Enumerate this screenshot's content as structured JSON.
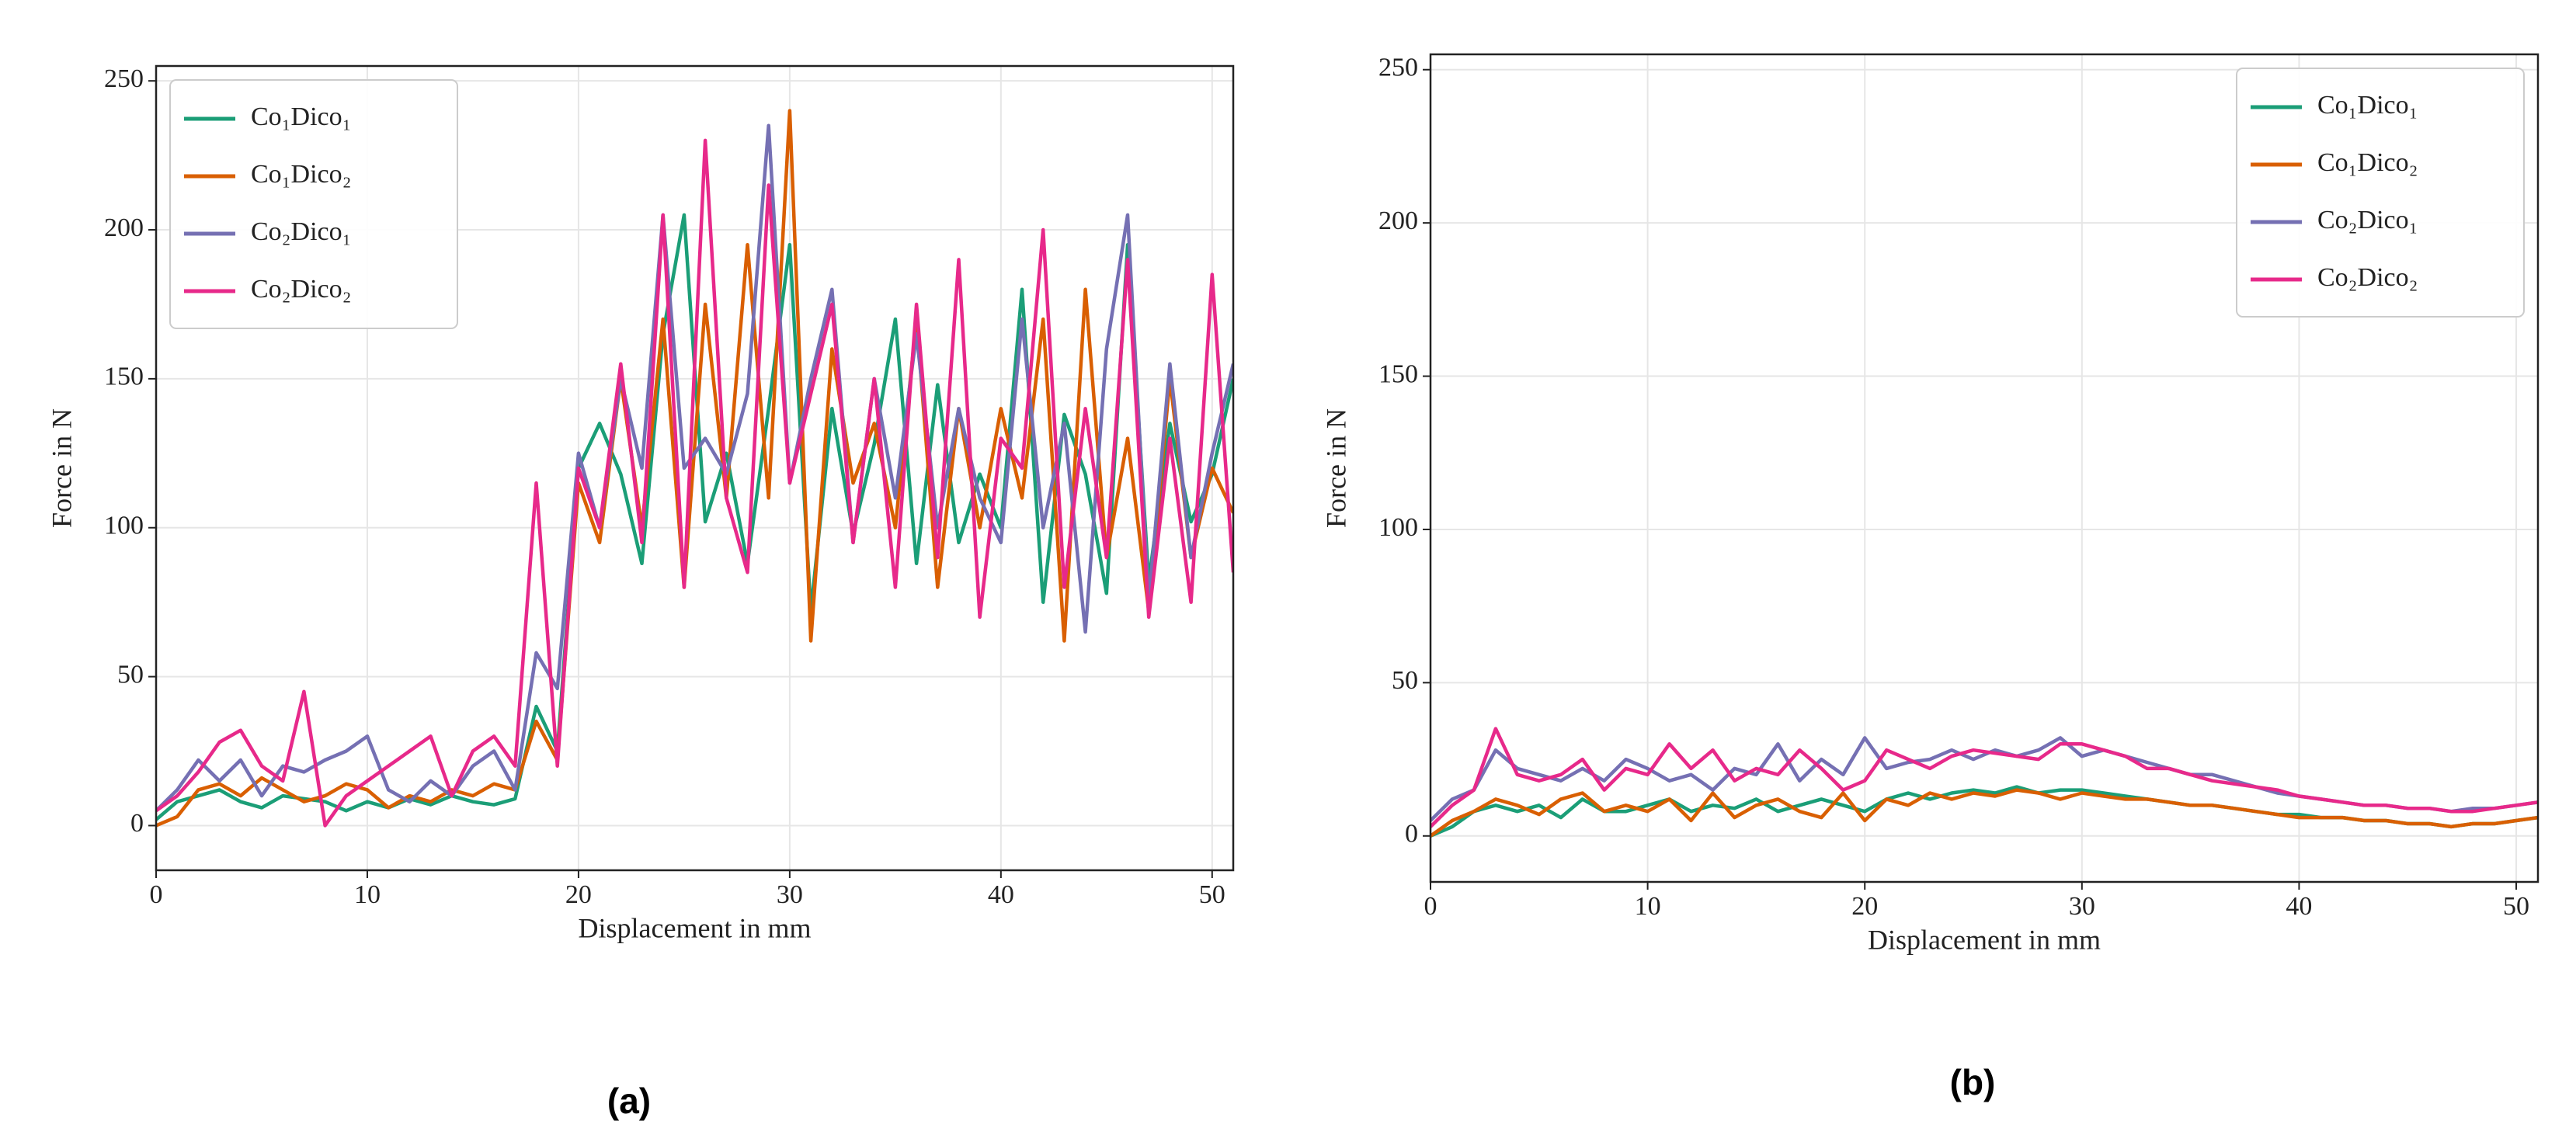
{
  "chart_data": [
    {
      "type": "line",
      "caption": "(a)",
      "xlabel": "Displacement in mm",
      "ylabel": "Force in N",
      "xlim": [
        0,
        51
      ],
      "ylim": [
        -15,
        255
      ],
      "xticks": [
        0,
        10,
        20,
        30,
        40,
        50
      ],
      "yticks": [
        0,
        50,
        100,
        150,
        200,
        250
      ],
      "grid": true,
      "legend": "upper left",
      "x": [
        0,
        1,
        2,
        3,
        4,
        5,
        6,
        7,
        8,
        9,
        10,
        11,
        12,
        13,
        14,
        15,
        16,
        17,
        18,
        19,
        20,
        21,
        22,
        23,
        24,
        25,
        26,
        27,
        28,
        29,
        30,
        31,
        32,
        33,
        34,
        35,
        36,
        37,
        38,
        39,
        40,
        41,
        42,
        43,
        44,
        45,
        46,
        47,
        48,
        49,
        50,
        51
      ],
      "series": [
        {
          "name": "Co₁Dico₁",
          "color": "#1b9e77",
          "values": [
            2,
            8,
            10,
            12,
            8,
            6,
            10,
            9,
            8,
            5,
            8,
            6,
            9,
            7,
            10,
            8,
            7,
            9,
            40,
            25,
            120,
            135,
            118,
            88,
            165,
            205,
            102,
            125,
            88,
            140,
            195,
            72,
            140,
            98,
            128,
            170,
            88,
            148,
            95,
            118,
            100,
            180,
            75,
            138,
            118,
            78,
            195,
            82,
            135,
            102,
            118,
            150
          ]
        },
        {
          "name": "Co₁Dico₂",
          "color": "#d95f02",
          "values": [
            0,
            3,
            12,
            14,
            10,
            16,
            12,
            8,
            10,
            14,
            12,
            6,
            10,
            8,
            12,
            10,
            14,
            12,
            35,
            22,
            115,
            95,
            150,
            100,
            170,
            80,
            175,
            110,
            195,
            110,
            240,
            62,
            160,
            115,
            135,
            100,
            170,
            80,
            140,
            100,
            140,
            110,
            170,
            62,
            180,
            90,
            130,
            72,
            150,
            90,
            120,
            105
          ]
        },
        {
          "name": "Co₂Dico₁",
          "color": "#7570b3",
          "values": [
            5,
            12,
            22,
            15,
            22,
            10,
            20,
            18,
            22,
            25,
            30,
            12,
            8,
            15,
            10,
            20,
            25,
            12,
            58,
            46,
            125,
            100,
            150,
            120,
            205,
            120,
            130,
            118,
            145,
            235,
            115,
            150,
            180,
            95,
            150,
            110,
            165,
            100,
            140,
            110,
            95,
            170,
            100,
            135,
            65,
            160,
            205,
            75,
            155,
            90,
            125,
            155
          ]
        },
        {
          "name": "Co₂Dico₂",
          "color": "#e7298a",
          "values": [
            5,
            10,
            18,
            28,
            32,
            20,
            15,
            45,
            0,
            10,
            15,
            20,
            25,
            30,
            10,
            25,
            30,
            20,
            115,
            20,
            120,
            100,
            155,
            95,
            205,
            80,
            230,
            110,
            85,
            215,
            115,
            145,
            175,
            95,
            150,
            80,
            175,
            90,
            190,
            70,
            130,
            120,
            200,
            80,
            140,
            90,
            190,
            70,
            130,
            75,
            185,
            85
          ]
        }
      ]
    },
    {
      "type": "line",
      "caption": "(b)",
      "xlabel": "Displacement in mm",
      "ylabel": "Force in N",
      "xlim": [
        0,
        51
      ],
      "ylim": [
        -15,
        255
      ],
      "xticks": [
        0,
        10,
        20,
        30,
        40,
        50
      ],
      "yticks": [
        0,
        50,
        100,
        150,
        200,
        250
      ],
      "grid": true,
      "legend": "upper right",
      "x": [
        0,
        1,
        2,
        3,
        4,
        5,
        6,
        7,
        8,
        9,
        10,
        11,
        12,
        13,
        14,
        15,
        16,
        17,
        18,
        19,
        20,
        21,
        22,
        23,
        24,
        25,
        26,
        27,
        28,
        29,
        30,
        31,
        32,
        33,
        34,
        35,
        36,
        37,
        38,
        39,
        40,
        41,
        42,
        43,
        44,
        45,
        46,
        47,
        48,
        49,
        50,
        51
      ],
      "series": [
        {
          "name": "Co₁Dico₁",
          "color": "#1b9e77",
          "values": [
            0,
            3,
            8,
            10,
            8,
            10,
            6,
            12,
            8,
            8,
            10,
            12,
            8,
            10,
            9,
            12,
            8,
            10,
            12,
            10,
            8,
            12,
            14,
            12,
            14,
            15,
            14,
            16,
            14,
            15,
            15,
            14,
            13,
            12,
            11,
            10,
            10,
            9,
            8,
            7,
            7,
            6,
            6,
            5,
            5,
            4,
            4,
            3,
            4,
            4,
            5,
            6
          ]
        },
        {
          "name": "Co₁Dico₂",
          "color": "#d95f02",
          "values": [
            0,
            5,
            8,
            12,
            10,
            7,
            12,
            14,
            8,
            10,
            8,
            12,
            5,
            14,
            6,
            10,
            12,
            8,
            6,
            14,
            5,
            12,
            10,
            14,
            12,
            14,
            13,
            15,
            14,
            12,
            14,
            13,
            12,
            12,
            11,
            10,
            10,
            9,
            8,
            7,
            6,
            6,
            6,
            5,
            5,
            4,
            4,
            3,
            4,
            4,
            5,
            6
          ]
        },
        {
          "name": "Co₂Dico₁",
          "color": "#7570b3",
          "values": [
            5,
            12,
            15,
            28,
            22,
            20,
            18,
            22,
            18,
            25,
            22,
            18,
            20,
            15,
            22,
            20,
            30,
            18,
            25,
            20,
            32,
            22,
            24,
            25,
            28,
            25,
            28,
            26,
            28,
            32,
            26,
            28,
            26,
            24,
            22,
            20,
            20,
            18,
            16,
            14,
            13,
            12,
            11,
            10,
            10,
            9,
            9,
            8,
            9,
            9,
            10,
            11
          ]
        },
        {
          "name": "Co₂Dico₂",
          "color": "#e7298a",
          "values": [
            3,
            10,
            15,
            35,
            20,
            18,
            20,
            25,
            15,
            22,
            20,
            30,
            22,
            28,
            18,
            22,
            20,
            28,
            22,
            15,
            18,
            28,
            25,
            22,
            26,
            28,
            27,
            26,
            25,
            30,
            30,
            28,
            26,
            22,
            22,
            20,
            18,
            17,
            16,
            15,
            13,
            12,
            11,
            10,
            10,
            9,
            9,
            8,
            8,
            9,
            10,
            11
          ]
        }
      ]
    }
  ]
}
